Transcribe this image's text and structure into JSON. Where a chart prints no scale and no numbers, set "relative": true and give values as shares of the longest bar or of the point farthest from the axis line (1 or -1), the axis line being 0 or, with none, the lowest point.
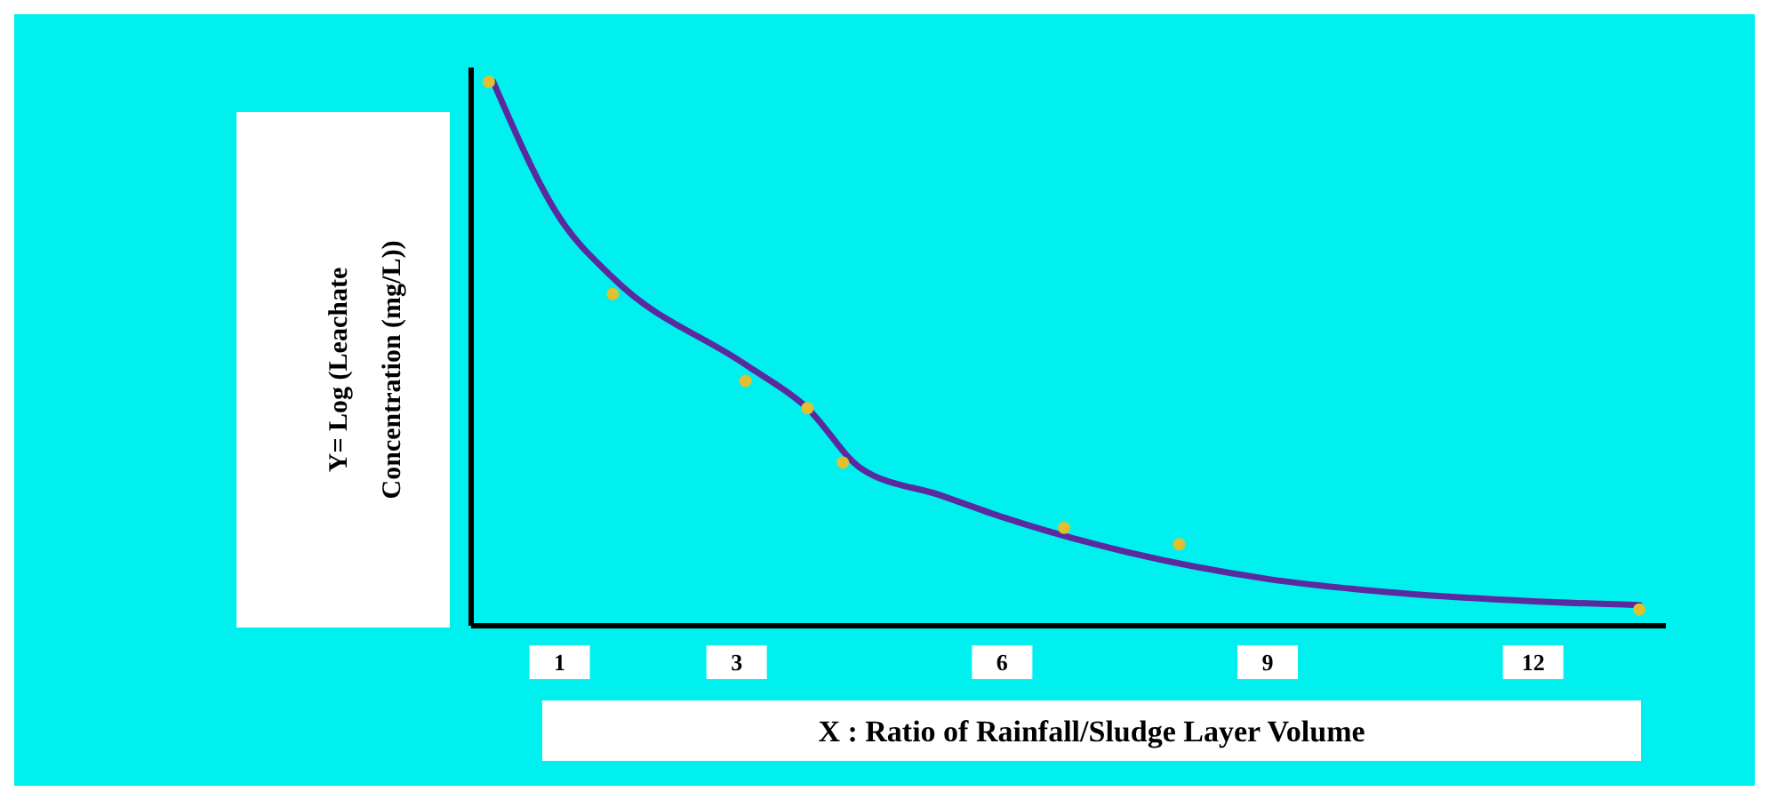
{
  "chart_data": {
    "type": "scatter",
    "relative": true,
    "xlabel": "X : Ratio of Rainfall/Sludge Layer Volume",
    "ylabel": "Y= Log (Leachate Concentration (mg/L))",
    "xlim": [
      0,
      13.5
    ],
    "xticks": [
      1,
      3,
      6,
      9,
      12
    ],
    "grid": false,
    "series": [
      {
        "color": "#e0c030",
        "marker": "circle",
        "x": [
          0.2,
          1.6,
          3.1,
          3.8,
          4.2,
          6.7,
          8.0,
          13.2
        ],
        "values": [
          1.0,
          0.61,
          0.45,
          0.4,
          0.3,
          0.18,
          0.15,
          0.03
        ]
      },
      {
        "type": "line",
        "color": "#5b2a9e",
        "marker": "none",
        "line_style": "solid",
        "x": [
          0.25,
          1,
          1.6,
          3.1,
          3.8,
          4.4,
          5.3,
          6,
          7.05,
          9,
          10.5,
          12,
          13.2
        ],
        "values": [
          1.0,
          0.75,
          0.64,
          0.48,
          0.4,
          0.29,
          0.24,
          0.2,
          0.15,
          0.086,
          0.06,
          0.045,
          0.038
        ]
      }
    ]
  }
}
